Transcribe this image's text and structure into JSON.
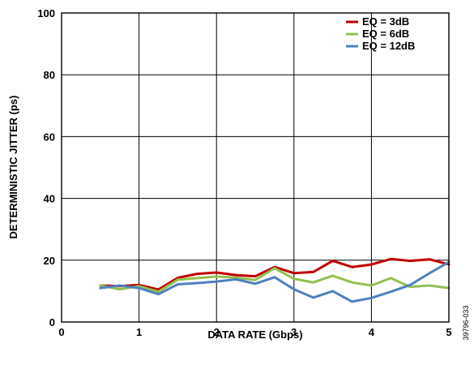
{
  "figure_id": "39796-033",
  "chart_data": {
    "type": "line",
    "title": "",
    "xlabel": "DATA RATE (Gbps)",
    "ylabel": "DETERMINISTIC JITTER (ps)",
    "xlim": [
      0,
      5
    ],
    "ylim": [
      0,
      100
    ],
    "x_ticks": [
      0,
      1,
      2,
      3,
      4,
      5
    ],
    "y_ticks": [
      0,
      20,
      40,
      60,
      80,
      100
    ],
    "grid": true,
    "legend_position": "top-right",
    "x": [
      0.5,
      0.75,
      1.0,
      1.25,
      1.5,
      1.75,
      2.0,
      2.25,
      2.5,
      2.75,
      3.0,
      3.25,
      3.5,
      3.75,
      4.0,
      4.25,
      4.5,
      4.75,
      5.0
    ],
    "series": [
      {
        "name": "EQ = 3dB",
        "color": "#c00000",
        "values": [
          11.8,
          11.6,
          12.0,
          10.5,
          14.3,
          15.6,
          16.0,
          15.2,
          14.8,
          17.8,
          15.8,
          16.2,
          19.8,
          17.8,
          18.6,
          20.4,
          19.8,
          20.3,
          18.6
        ]
      },
      {
        "name": "EQ = 6dB",
        "color": "#92c050",
        "values": [
          11.8,
          10.6,
          11.6,
          9.8,
          13.7,
          14.2,
          14.7,
          14.4,
          13.6,
          17.4,
          14.0,
          12.8,
          15.0,
          12.8,
          11.8,
          14.2,
          11.4,
          11.8,
          11.0
        ]
      },
      {
        "name": "EQ = 12dB",
        "color": "#4f81bd",
        "values": [
          11.0,
          11.8,
          11.0,
          9.0,
          12.2,
          12.6,
          13.1,
          13.8,
          12.4,
          14.5,
          10.6,
          7.9,
          10.0,
          6.6,
          7.8,
          9.8,
          12.0,
          15.8,
          19.4
        ]
      }
    ]
  }
}
